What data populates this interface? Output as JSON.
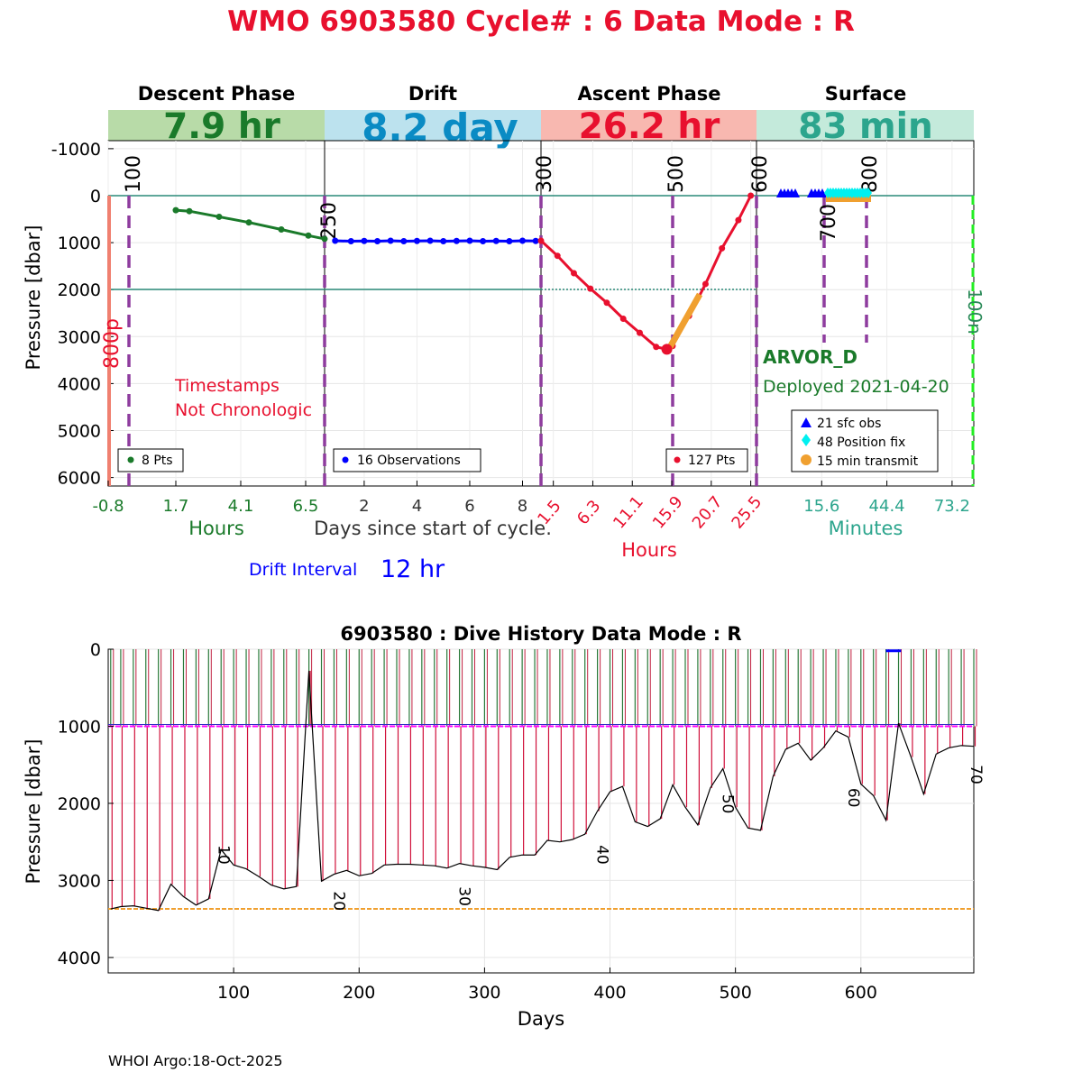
{
  "title": "WMO 6903580   Cycle# : 6   Data Mode : R",
  "footer": "WHOI Argo:18-Oct-2025",
  "colors": {
    "title": "#e8102e",
    "descent": "#1a7a2a",
    "drift": "#0000ff",
    "ascent": "#e8102e",
    "surface": "#2ca58d",
    "vline": "#8e3c9e",
    "orange": "#f0a030",
    "cyan": "#00f0f0"
  },
  "phases": {
    "descent": {
      "name": "Descent Phase",
      "duration": "7.9 hr",
      "legend": "8 Pts",
      "axis_label": "Hours",
      "ticks": [
        "-0.8",
        "1.7",
        "4.1",
        "6.5"
      ]
    },
    "drift": {
      "name": "Drift",
      "duration": "8.2 day",
      "legend": "16 Observations",
      "axis_label": "Days since start of cycle.",
      "ticks": [
        "2",
        "4",
        "6",
        "8"
      ]
    },
    "ascent": {
      "name": "Ascent Phase",
      "duration": "26.2 hr",
      "legend": "127 Pts",
      "axis_label": "Hours",
      "ticks": [
        "1.5",
        "6.3",
        "11.1",
        "15.9",
        "20.7",
        "25.5"
      ]
    },
    "surface": {
      "name": "Surface",
      "duration": "83 min",
      "axis_label": "Minutes",
      "ticks": [
        "15.6",
        "44.4",
        "73.2"
      ],
      "legend": [
        "21 sfc obs",
        "48 Position fix",
        "15 min transmit"
      ]
    }
  },
  "top_plot": {
    "ylabel": "Pressure [dbar]",
    "yticks": [
      "-1000",
      "0",
      "1000",
      "2000",
      "3000",
      "4000",
      "5000",
      "6000"
    ],
    "ylim": [
      6200,
      -1800
    ],
    "markers": [
      "100",
      "250",
      "300",
      "500",
      "600",
      "700",
      "800",
      "800p",
      "100n"
    ],
    "annotation": [
      "Timestamps",
      "Not Chronologic"
    ],
    "float_type": "ARVOR_D",
    "deployed": "Deployed 2021-04-20",
    "drift_interval_label": "Drift Interval",
    "drift_interval_value": "12 hr"
  },
  "chart_data": [
    {
      "type": "line",
      "title": "",
      "ylabel": "Pressure [dbar]",
      "ylim": [
        6200,
        -1800
      ],
      "series": [
        {
          "name": "Descent",
          "x_unit": "hours",
          "x": [
            1.7,
            2.2,
            3.3,
            4.4,
            5.6,
            6.6,
            7.2
          ],
          "values": [
            310,
            330,
            450,
            570,
            720,
            850,
            920
          ]
        },
        {
          "name": "Drift",
          "x_unit": "days",
          "x": [
            0.9,
            1.5,
            2.0,
            2.5,
            3.0,
            3.5,
            4.0,
            4.5,
            5.0,
            5.5,
            6.0,
            6.5,
            7.0,
            7.5,
            8.0,
            8.5
          ],
          "values": [
            960,
            970,
            965,
            970,
            960,
            970,
            965,
            960,
            970,
            965,
            960,
            970,
            965,
            970,
            960,
            965
          ]
        },
        {
          "name": "Ascent",
          "x_unit": "hours",
          "x": [
            0,
            2,
            4,
            6,
            8,
            10,
            12,
            14,
            15.3,
            16,
            18,
            20,
            22,
            24,
            25.5
          ],
          "values": [
            960,
            1280,
            1650,
            1980,
            2280,
            2620,
            2920,
            3220,
            3270,
            3200,
            2560,
            1880,
            1120,
            520,
            0
          ]
        }
      ]
    },
    {
      "type": "line",
      "title": "6903580 : Dive History      Data Mode : R",
      "xlabel": "Days",
      "ylabel": "Pressure [dbar]",
      "xticks": [
        "100",
        "200",
        "300",
        "400",
        "500",
        "600"
      ],
      "yticks": [
        "0",
        "1000",
        "2000",
        "3000",
        "4000"
      ],
      "xlim": [
        0,
        690
      ],
      "ylim": [
        4200,
        0
      ],
      "cycle_labels": [
        {
          "label": "10",
          "x": 88,
          "y": 2540
        },
        {
          "label": "20",
          "x": 180,
          "y": 3140
        },
        {
          "label": "30",
          "x": 280,
          "y": 3080
        },
        {
          "label": "40",
          "x": 390,
          "y": 2540
        },
        {
          "label": "50",
          "x": 490,
          "y": 1880
        },
        {
          "label": "60",
          "x": 590,
          "y": 1800
        },
        {
          "label": "70",
          "x": 688,
          "y": 1500
        }
      ],
      "profile_depth": {
        "x": [
          2,
          10,
          20,
          30,
          40,
          50,
          60,
          70,
          80,
          90,
          100,
          110,
          120,
          130,
          140,
          150,
          160,
          170,
          180,
          190,
          200,
          210,
          220,
          230,
          240,
          250,
          260,
          270,
          280,
          290,
          300,
          310,
          320,
          330,
          340,
          350,
          360,
          370,
          380,
          390,
          400,
          410,
          420,
          430,
          440,
          450,
          460,
          470,
          480,
          490,
          500,
          510,
          520,
          530,
          540,
          550,
          560,
          570,
          580,
          590,
          600,
          610,
          620,
          630,
          640,
          650,
          660,
          670,
          680,
          690
        ],
        "values": [
          3370,
          3340,
          3330,
          3360,
          3390,
          3050,
          3210,
          3320,
          3240,
          2600,
          2800,
          2850,
          2950,
          3060,
          3110,
          3080,
          280,
          3010,
          2920,
          2870,
          2940,
          2910,
          2800,
          2790,
          2790,
          2800,
          2810,
          2840,
          2780,
          2810,
          2830,
          2860,
          2700,
          2670,
          2670,
          2480,
          2500,
          2470,
          2400,
          2100,
          1850,
          1780,
          2240,
          2300,
          2200,
          1760,
          2050,
          2280,
          1800,
          1550,
          2050,
          2320,
          2350,
          1650,
          1300,
          1220,
          1440,
          1280,
          1060,
          1140,
          1750,
          1900,
          2220,
          960,
          1400,
          1880,
          1360,
          1280,
          1250,
          1260
        ]
      },
      "park_depth": 1000,
      "max_depth_reference": 3370
    }
  ]
}
